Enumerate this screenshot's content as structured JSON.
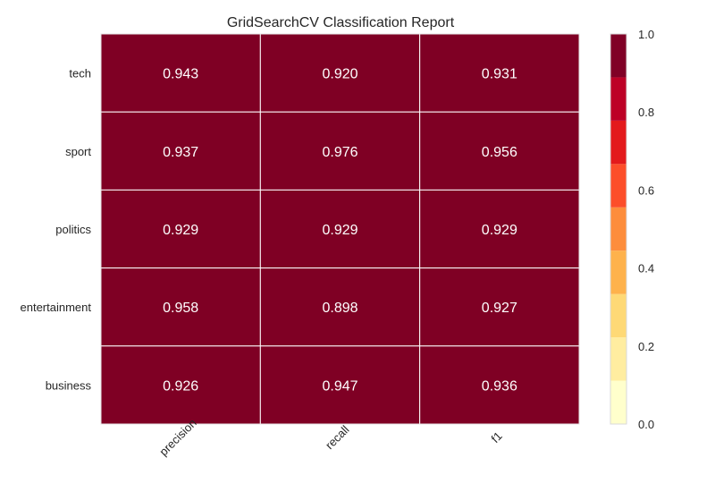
{
  "chart_data": {
    "type": "heatmap",
    "title": "GridSearchCV Classification Report",
    "rows": [
      "tech",
      "sport",
      "politics",
      "entertainment",
      "business"
    ],
    "columns": [
      "precision",
      "recall",
      "f1"
    ],
    "values": [
      [
        0.943,
        0.92,
        0.931
      ],
      [
        0.937,
        0.976,
        0.956
      ],
      [
        0.929,
        0.929,
        0.929
      ],
      [
        0.958,
        0.898,
        0.927
      ],
      [
        0.926,
        0.947,
        0.936
      ]
    ],
    "value_labels": [
      [
        "0.943",
        "0.920",
        "0.931"
      ],
      [
        "0.937",
        "0.976",
        "0.956"
      ],
      [
        "0.929",
        "0.929",
        "0.929"
      ],
      [
        "0.958",
        "0.898",
        "0.927"
      ],
      [
        "0.926",
        "0.947",
        "0.936"
      ]
    ],
    "colorbar": {
      "ticks": [
        "0.0",
        "0.2",
        "0.4",
        "0.6",
        "0.8",
        "1.0"
      ],
      "range": [
        0.0,
        1.0
      ],
      "colors": [
        "#ffffcc",
        "#ffeda0",
        "#fed976",
        "#feb24c",
        "#fd8d3c",
        "#fc4e2a",
        "#e31a1c",
        "#bd0026",
        "#800026"
      ]
    },
    "grid": true,
    "cell_color": "#7f0024",
    "grid_color": "#ffffff",
    "text_color": "#ffffff"
  }
}
